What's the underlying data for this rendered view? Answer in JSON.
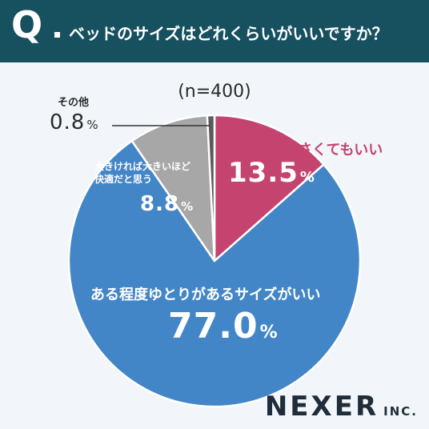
{
  "header": {
    "q_mark": "Q",
    "question": "ベッドのサイズはどれくらいがいいですか？"
  },
  "chart_data": {
    "type": "pie",
    "sample_size": "(n=400)",
    "slices": [
      {
        "label": "寝れれば小さくてもいい",
        "value": 13.5,
        "value_text": "13.5",
        "unit": "%",
        "color": "#c5446f"
      },
      {
        "label": "ある程度ゆとりがあるサイズがいい",
        "value": 77.0,
        "value_text": "77.0",
        "unit": "%",
        "color": "#4386c7"
      },
      {
        "label_lines": [
          "大きければ大きいほど",
          "快適だと思う"
        ],
        "value": 8.8,
        "value_text": "8.8",
        "unit": "%",
        "color": "#a7a7a7"
      },
      {
        "label": "その他",
        "value": 0.8,
        "value_text": "0.8",
        "unit": "%",
        "color": "#5b5b5b"
      }
    ]
  },
  "brand": {
    "main": "NEXER",
    "sub": "INC."
  }
}
